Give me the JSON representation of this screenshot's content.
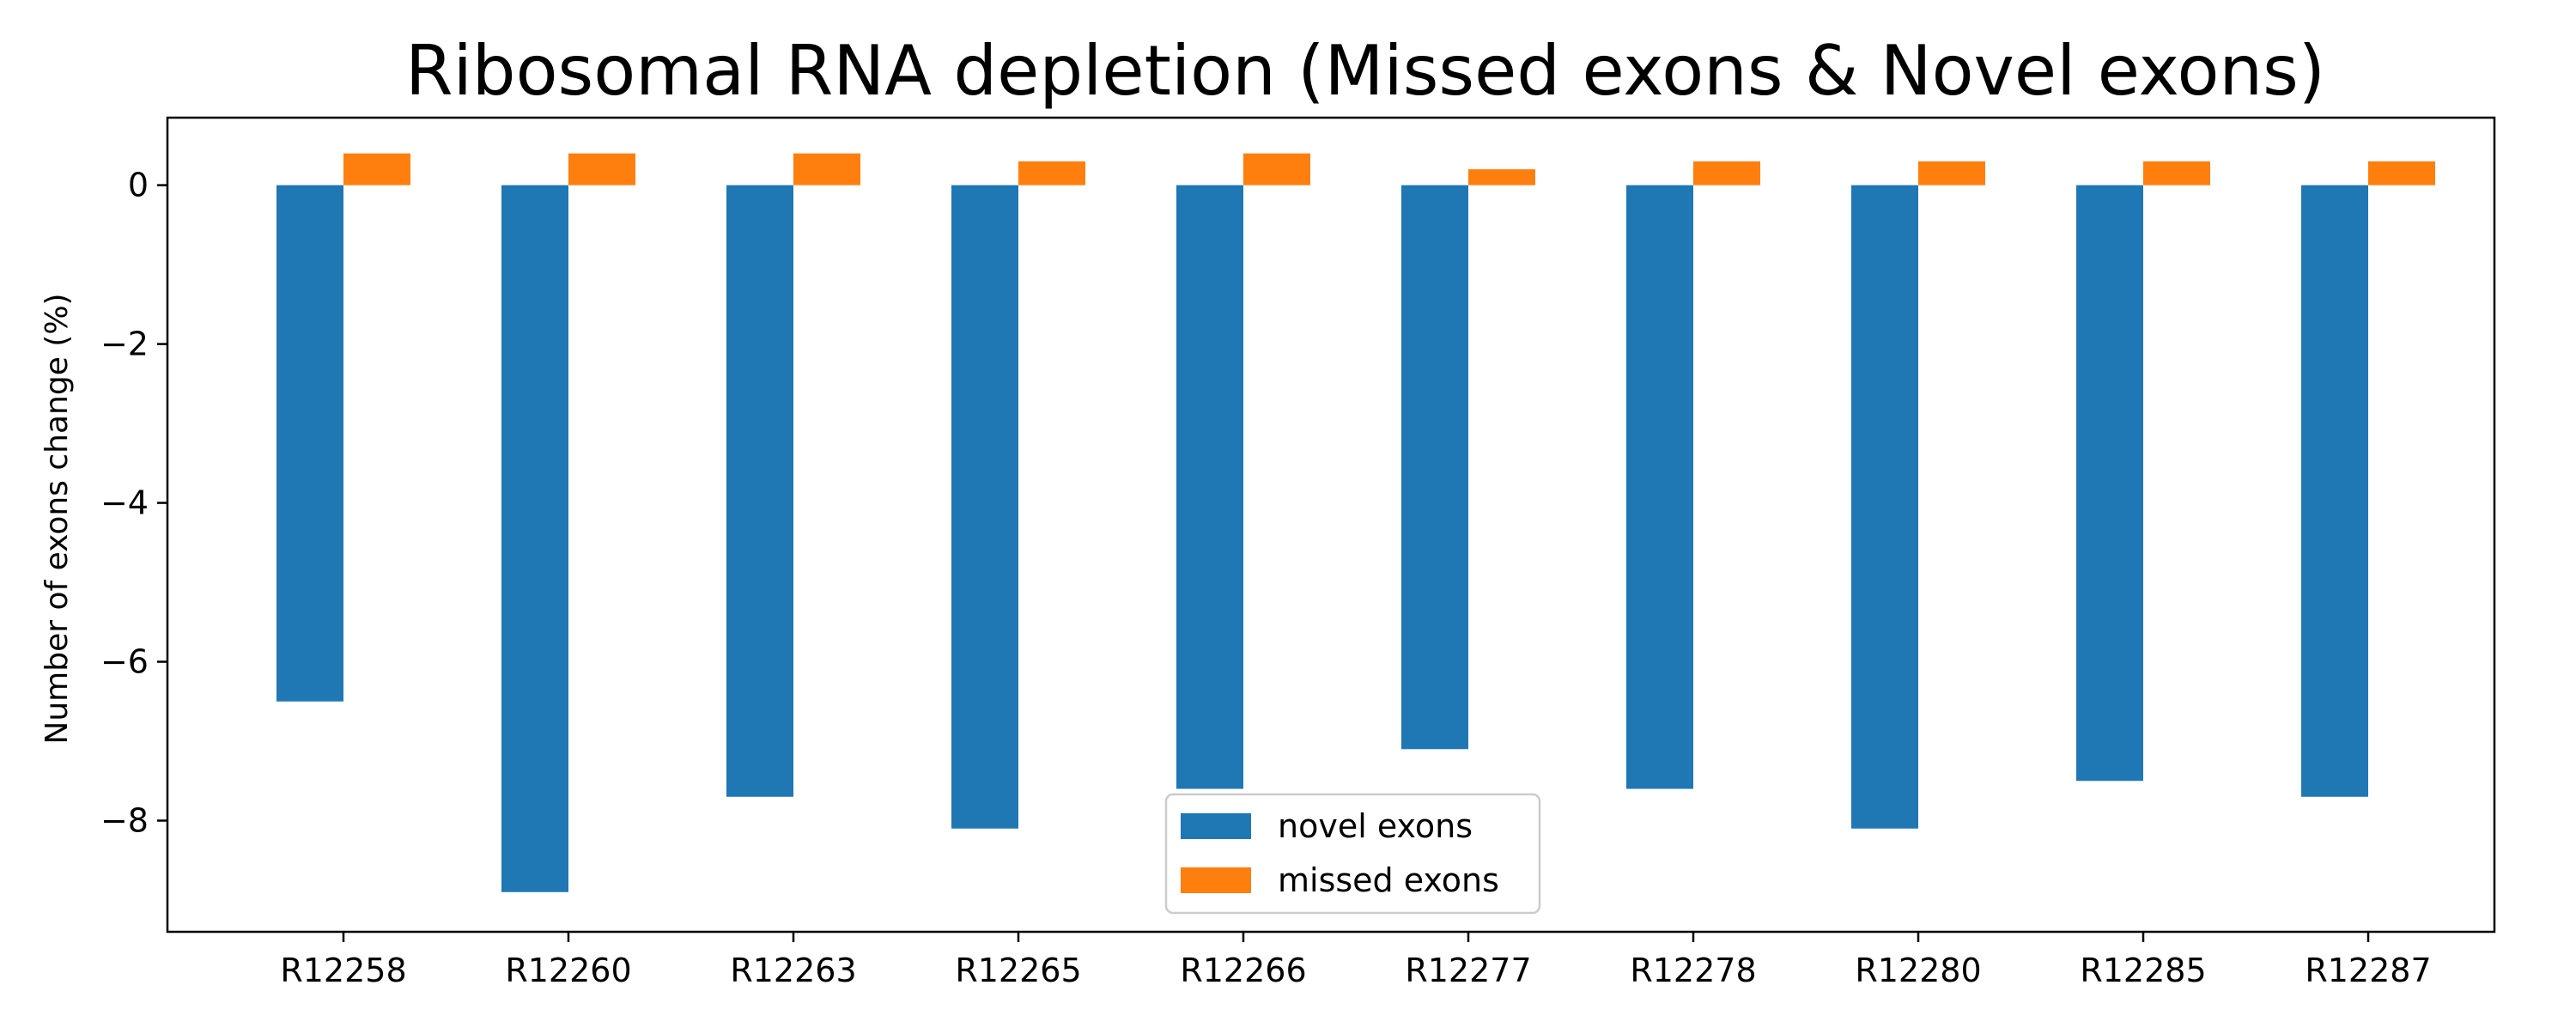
{
  "chart_data": {
    "type": "bar",
    "title": "Ribosomal RNA depletion (Missed exons & Novel exons)",
    "xlabel": "",
    "ylabel": "Number of exons change (%)",
    "categories": [
      "R12258",
      "R12260",
      "R12263",
      "R12265",
      "R12266",
      "R12277",
      "R12278",
      "R12280",
      "R12285",
      "R12287"
    ],
    "series": [
      {
        "name": "novel exons",
        "color": "#1f77b4",
        "values": [
          -6.5,
          -8.9,
          -7.7,
          -8.1,
          -7.6,
          -7.1,
          -7.6,
          -8.1,
          -7.5,
          -7.7
        ]
      },
      {
        "name": "missed exons",
        "color": "#ff7f0e",
        "values": [
          0.4,
          0.4,
          0.4,
          0.3,
          0.4,
          0.2,
          0.3,
          0.3,
          0.3,
          0.3
        ]
      }
    ],
    "ylim": [
      -9.4,
      0.85
    ],
    "yticks": [
      0,
      -2,
      -4,
      -6,
      -8
    ],
    "ytick_labels": [
      "0",
      "−2",
      "−4",
      "−6",
      "−8"
    ],
    "grid": false,
    "legend_position": "lower-center"
  }
}
